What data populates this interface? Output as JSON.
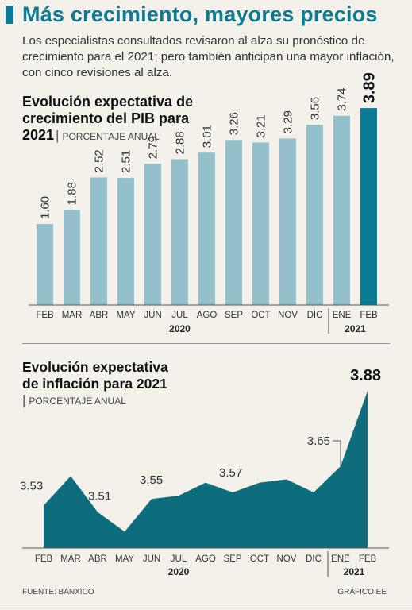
{
  "headline": "Más crecimiento, mayores precios",
  "intro": "Los especialistas consultados revisaron al alza su pronóstico de crecimiento para el 2021; pero también anticipan una mayor inflación, con cinco revisiones al alza.",
  "colors": {
    "accent": "#0b7a93",
    "bar": "#93c0cb",
    "bar_highlight": "#0b7a93",
    "area": "#0e6d7c"
  },
  "footer": {
    "source": "FUENTE: BANXICO",
    "credit": "GRÁFICO EE"
  },
  "chart_data": [
    {
      "type": "bar",
      "title_line1": "Evolución expectativa de",
      "title_line2": "crecimiento del PIB para",
      "title_line3": "2021",
      "unit": "PORCENTAJE ANUAL",
      "categories": [
        "FEB",
        "MAR",
        "ABR",
        "MAY",
        "JUN",
        "JUL",
        "AGO",
        "SEP",
        "OCT",
        "NOV",
        "DIC",
        "ENE",
        "FEB"
      ],
      "values": [
        1.6,
        1.88,
        2.52,
        2.51,
        2.79,
        2.88,
        3.01,
        3.26,
        3.21,
        3.29,
        3.56,
        3.74,
        3.89
      ],
      "labels": [
        "1.60",
        "1.88",
        "2.52",
        "2.51",
        "2.79",
        "2.88",
        "3.01",
        "3.26",
        "3.21",
        "3.29",
        "3.56",
        "3.74",
        "3.89"
      ],
      "year_groups": [
        "2020",
        "2021"
      ],
      "highlight_index": 12,
      "ylim": [
        0,
        4.3
      ]
    },
    {
      "type": "area",
      "title_line1": "Evolución expectativa",
      "title_line2": "de inflación para 2021",
      "unit": "PORCENTAJE ANUAL",
      "categories": [
        "FEB",
        "MAR",
        "ABR",
        "MAY",
        "JUN",
        "JUL",
        "AGO",
        "SEP",
        "OCT",
        "NOV",
        "DIC",
        "ENE",
        "FEB"
      ],
      "values": [
        3.53,
        3.62,
        3.51,
        3.45,
        3.55,
        3.56,
        3.6,
        3.57,
        3.6,
        3.61,
        3.57,
        3.65,
        3.88
      ],
      "labels": [
        {
          "index": 0,
          "text": "3.53"
        },
        {
          "index": 2,
          "text": "3.51"
        },
        {
          "index": 4,
          "text": "3.55"
        },
        {
          "index": 7,
          "text": "3.57"
        },
        {
          "index": 11,
          "text": "3.65"
        },
        {
          "index": 12,
          "text": "3.88"
        }
      ],
      "year_groups": [
        "2020",
        "2021"
      ],
      "ylim": [
        3.4,
        3.9
      ]
    }
  ]
}
